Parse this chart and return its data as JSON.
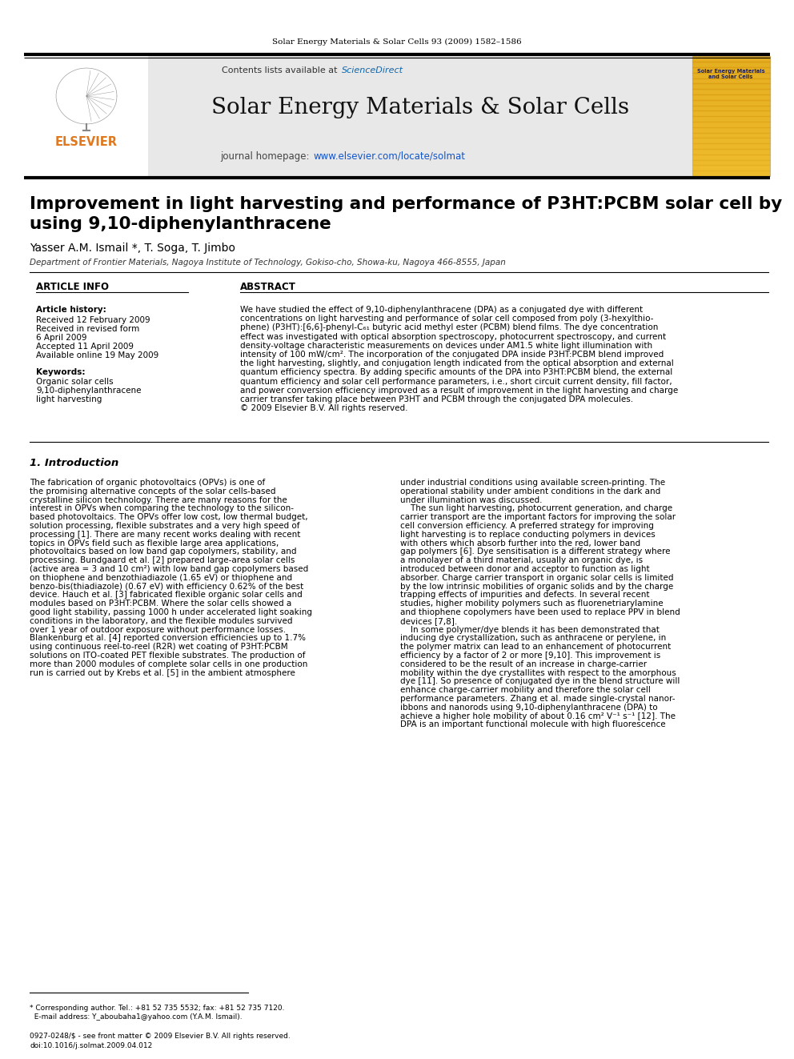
{
  "page_header": "Solar Energy Materials & Solar Cells 93 (2009) 1582–1586",
  "journal_name": "Solar Energy Materials & Solar Cells",
  "paper_title_line1": "Improvement in light harvesting and performance of P3HT:PCBM solar cell by",
  "paper_title_line2": "using 9,10-diphenylanthracene",
  "authors": "Yasser A.M. Ismail *, T. Soga, T. Jimbo",
  "affiliation": "Department of Frontier Materials, Nagoya Institute of Technology, Gokiso-cho, Showa-ku, Nagoya 466-8555, Japan",
  "article_info_header": "ARTICLE INFO",
  "abstract_header": "ABSTRACT",
  "header_bg": "#e8e8e8",
  "elsevier_orange": "#e07820",
  "sciencedirect_blue": "#1166aa",
  "link_blue": "#1155cc",
  "abstract_lines": [
    "We have studied the effect of 9,10-diphenylanthracene (DPA) as a conjugated dye with different",
    "concentrations on light harvesting and performance of solar cell composed from poly (3-hexylthio-",
    "phene) (P3HT):[6,6]-phenyl-C₆₁ butyric acid methyl ester (PCBM) blend films. The dye concentration",
    "effect was investigated with optical absorption spectroscopy, photocurrent spectroscopy, and current",
    "density-voltage characteristic measurements on devices under AM1.5 white light illumination with",
    "intensity of 100 mW/cm². The incorporation of the conjugated DPA inside P3HT:PCBM blend improved",
    "the light harvesting, slightly, and conjugation length indicated from the optical absorption and external",
    "quantum efficiency spectra. By adding specific amounts of the DPA into P3HT:PCBM blend, the external",
    "quantum efficiency and solar cell performance parameters, i.e., short circuit current density, fill factor,",
    "and power conversion efficiency improved as a result of improvement in the light harvesting and charge",
    "carrier transfer taking place between P3HT and PCBM through the conjugated DPA molecules.",
    "© 2009 Elsevier B.V. All rights reserved."
  ],
  "intro_col1_lines": [
    "The fabrication of organic photovoltaics (OPVs) is one of",
    "the promising alternative concepts of the solar cells-based",
    "crystalline silicon technology. There are many reasons for the",
    "interest in OPVs when comparing the technology to the silicon-",
    "based photovoltaics. The OPVs offer low cost, low thermal budget,",
    "solution processing, flexible substrates and a very high speed of",
    "processing [1]. There are many recent works dealing with recent",
    "topics in OPVs field such as flexible large area applications,",
    "photovoltaics based on low band gap copolymers, stability, and",
    "processing. Bundgaard et al. [2] prepared large-area solar cells",
    "(active area = 3 and 10 cm²) with low band gap copolymers based",
    "on thiophene and benzothiadiazole (1.65 eV) or thiophene and",
    "benzo-bis(thiadiazole) (0.67 eV) with efficiency 0.62% of the best",
    "device. Hauch et al. [3] fabricated flexible organic solar cells and",
    "modules based on P3HT:PCBM. Where the solar cells showed a",
    "good light stability, passing 1000 h under accelerated light soaking",
    "conditions in the laboratory, and the flexible modules survived",
    "over 1 year of outdoor exposure without performance losses.",
    "Blankenburg et al. [4] reported conversion efficiencies up to 1.7%",
    "using continuous reel-to-reel (R2R) wet coating of P3HT:PCBM",
    "solutions on ITO-coated PET flexible substrates. The production of",
    "more than 2000 modules of complete solar cells in one production",
    "run is carried out by Krebs et al. [5] in the ambient atmosphere"
  ],
  "intro_col2_lines": [
    "under industrial conditions using available screen-printing. The",
    "operational stability under ambient conditions in the dark and",
    "under illumination was discussed.",
    "    The sun light harvesting, photocurrent generation, and charge",
    "carrier transport are the important factors for improving the solar",
    "cell conversion efficiency. A preferred strategy for improving",
    "light harvesting is to replace conducting polymers in devices",
    "with others which absorb further into the red, lower band",
    "gap polymers [6]. Dye sensitisation is a different strategy where",
    "a monolayer of a third material, usually an organic dye, is",
    "introduced between donor and acceptor to function as light",
    "absorber. Charge carrier transport in organic solar cells is limited",
    "by the low intrinsic mobilities of organic solids and by the charge",
    "trapping effects of impurities and defects. In several recent",
    "studies, higher mobility polymers such as fluorenetriarylamine",
    "and thiophene copolymers have been used to replace PPV in blend",
    "devices [7,8].",
    "    In some polymer/dye blends it has been demonstrated that",
    "inducing dye crystallization, such as anthracene or perylene, in",
    "the polymer matrix can lead to an enhancement of photocurrent",
    "efficiency by a factor of 2 or more [9,10]. This improvement is",
    "considered to be the result of an increase in charge-carrier",
    "mobility within the dye crystallites with respect to the amorphous",
    "dye [11]. So presence of conjugated dye in the blend structure will",
    "enhance charge-carrier mobility and therefore the solar cell",
    "performance parameters. Zhang et al. made single-crystal nanor-",
    "ibbons and nanorods using 9,10-diphenylanthracene (DPA) to",
    "achieve a higher hole mobility of about 0.16 cm² V⁻¹ s⁻¹ [12]. The",
    "DPA is an important functional molecule with high fluorescence"
  ]
}
